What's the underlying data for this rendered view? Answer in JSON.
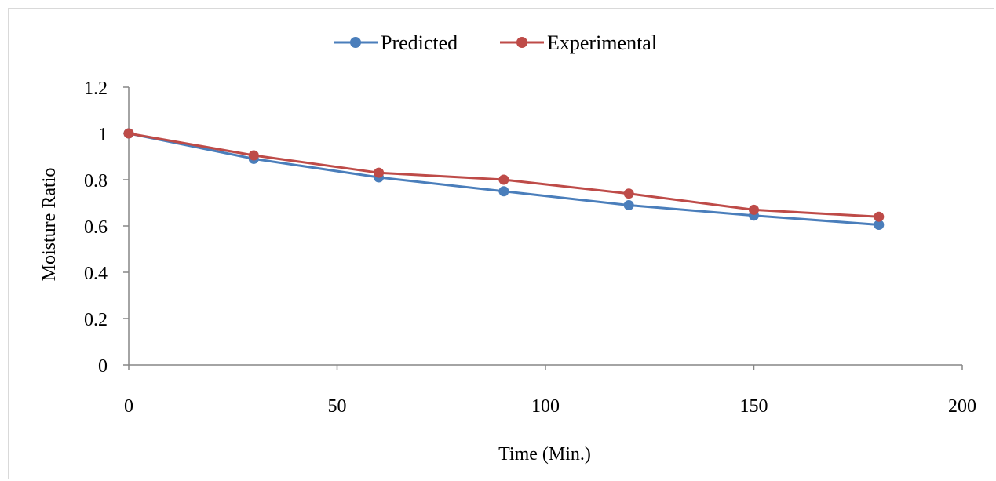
{
  "chart_data": {
    "type": "line",
    "title": "",
    "xlabel": "Time (Min.)",
    "ylabel": "Moisture Ratio",
    "xlim": [
      0,
      200
    ],
    "ylim": [
      0,
      1.2
    ],
    "x_ticks": [
      0,
      50,
      100,
      150,
      200
    ],
    "y_ticks": [
      0,
      0.2,
      0.4,
      0.6,
      0.8,
      1,
      1.2
    ],
    "x_tick_labels": [
      "0",
      "50",
      "100",
      "150",
      "200"
    ],
    "y_tick_labels": [
      "0",
      "0.2",
      "0.4",
      "0.6",
      "0.8",
      "1",
      "1.2"
    ],
    "grid": false,
    "legend_position": "top",
    "series": [
      {
        "name": "Predicted",
        "color": "#4a7ebb",
        "x": [
          0,
          30,
          60,
          90,
          120,
          150,
          180
        ],
        "y": [
          1.0,
          0.89,
          0.81,
          0.75,
          0.69,
          0.645,
          0.605
        ]
      },
      {
        "name": "Experimental",
        "color": "#be4b48",
        "x": [
          0,
          30,
          60,
          90,
          120,
          150,
          180
        ],
        "y": [
          1.0,
          0.905,
          0.83,
          0.8,
          0.74,
          0.67,
          0.64
        ]
      }
    ]
  }
}
